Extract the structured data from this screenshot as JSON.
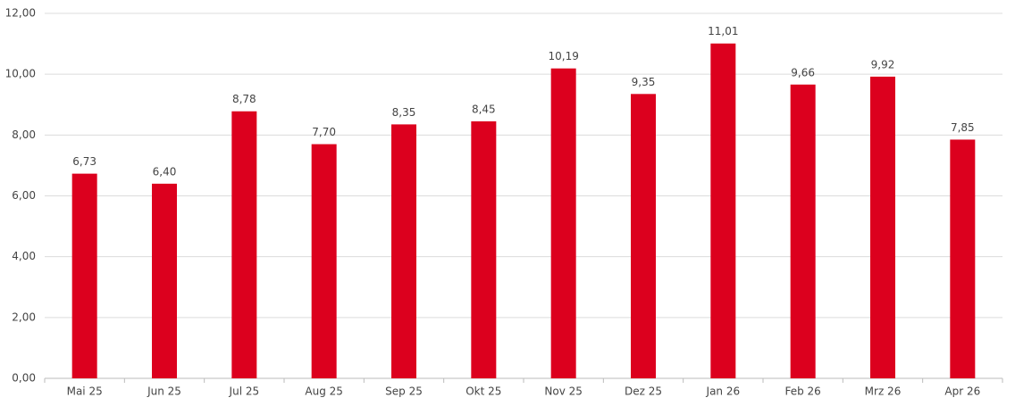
{
  "chart_data": {
    "type": "bar",
    "categories": [
      "Mai 25",
      "Jun 25",
      "Jul 25",
      "Aug 25",
      "Sep 25",
      "Okt 25",
      "Nov 25",
      "Dez 25",
      "Jan 26",
      "Feb 26",
      "Mrz 26",
      "Apr 26"
    ],
    "values": [
      6.73,
      6.4,
      8.78,
      7.7,
      8.35,
      8.45,
      10.19,
      9.35,
      11.01,
      9.66,
      9.92,
      7.85
    ],
    "value_labels": [
      "6,73",
      "6,40",
      "8,78",
      "7,70",
      "8,35",
      "8,45",
      "10,19",
      "9,35",
      "11,01",
      "9,66",
      "9,92",
      "7,85"
    ],
    "color": "#dc001e",
    "ylim": [
      0,
      12
    ],
    "yticks": [
      {
        "value": 0,
        "label": "0,00"
      },
      {
        "value": 2,
        "label": "2,00"
      },
      {
        "value": 4,
        "label": "4,00"
      },
      {
        "value": 6,
        "label": "6,00"
      },
      {
        "value": 8,
        "label": "8,00"
      },
      {
        "value": 10,
        "label": "10,00"
      },
      {
        "value": 12,
        "label": "12,00"
      }
    ],
    "grid": true
  }
}
